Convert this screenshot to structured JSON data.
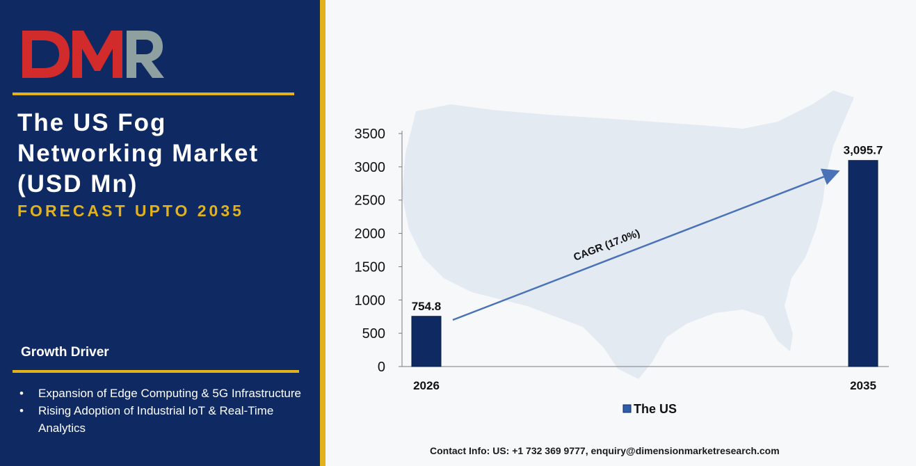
{
  "brand": {
    "logo_text": "DMR"
  },
  "report": {
    "title_line1": "The US Fog",
    "title_line2": "Networking Market",
    "title_line3": "(USD Mn)",
    "subtitle": "FORECAST UPTO 2035"
  },
  "growth_driver": {
    "heading": "Growth Driver",
    "items": [
      {
        "text": "Expansion of Edge Computing & 5G Infrastructure"
      },
      {
        "text": "Rising Adoption of Industrial IoT & Real-Time Analytics"
      }
    ]
  },
  "contact": "Contact Info: US: +1 732 369 9777, enquiry@dimensionmarketresearch.com",
  "colors": {
    "navy": "#0f2a63",
    "gold": "#e2b21d",
    "bar": "#0f2a63",
    "arrow": "#4a72b8",
    "logo_red": "#d12b2b",
    "logo_gray": "#8fa0a0"
  },
  "chart_data": {
    "type": "bar",
    "categories": [
      "2026",
      "2035"
    ],
    "series": [
      {
        "name": "The US",
        "values": [
          754.8,
          3095.7
        ]
      }
    ],
    "data_labels": [
      "754.8",
      "3,095.7"
    ],
    "yticks": [
      "0",
      "500",
      "1000",
      "1500",
      "2000",
      "2500",
      "3000",
      "3500"
    ],
    "ylim": [
      0,
      3500
    ],
    "annotation": "CAGR (17.0%)",
    "legend_position": "bottom",
    "grid": false
  }
}
